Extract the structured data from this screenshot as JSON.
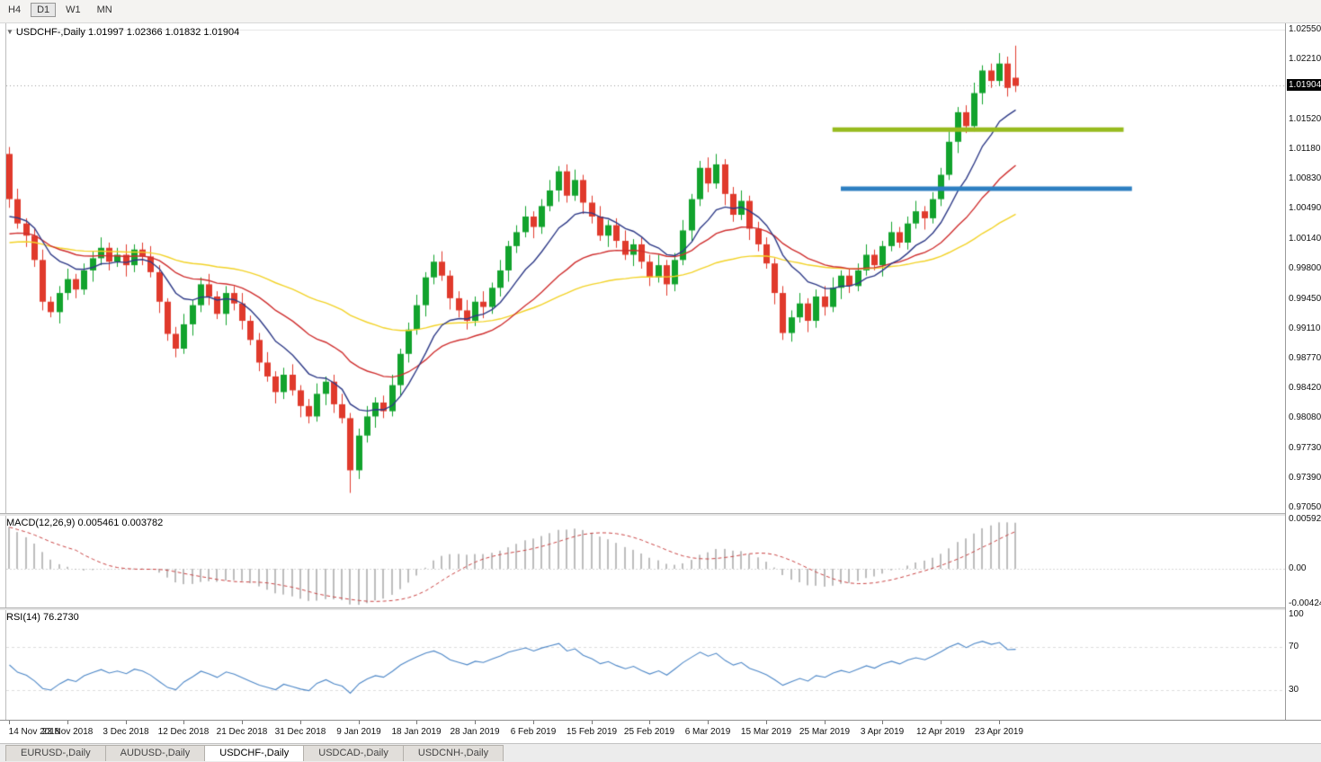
{
  "toolbar": {
    "timeframes": [
      {
        "label": "H4",
        "active": false
      },
      {
        "label": "D1",
        "active": true
      },
      {
        "label": "W1",
        "active": false
      },
      {
        "label": "MN",
        "active": false
      }
    ]
  },
  "main": {
    "title": "USDCHF-,Daily  1.01997 1.02366 1.01832 1.01904",
    "bid_label": "1.01904"
  },
  "macd_label": "MACD(12,26,9) 0.005461 0.003782",
  "rsi_label": "RSI(14) 76.2730",
  "tabs": [
    {
      "label": "EURUSD-,Daily",
      "active": false
    },
    {
      "label": "AUDUSD-,Daily",
      "active": false
    },
    {
      "label": "USDCHF-,Daily",
      "active": true
    },
    {
      "label": "USDCAD-,Daily",
      "active": false
    },
    {
      "label": "USDCNH-,Daily",
      "active": false
    }
  ],
  "chart_data": {
    "type": "candlestick",
    "symbol": "USDCHF-",
    "timeframe": "Daily",
    "ohlc_display": {
      "open": "1.01997",
      "high": "1.02366",
      "low": "1.01832",
      "close": "1.01904"
    },
    "bid": 1.01904,
    "up_color": "#12a32d",
    "down_color": "#e03a2c",
    "y_axis": {
      "max": 1.0255,
      "min": 0.9705,
      "labels": [
        "1.02550",
        "1.02210",
        "1.01870",
        "1.01520",
        "1.01180",
        "1.00830",
        "1.00490",
        "1.00140",
        "0.99800",
        "0.99450",
        "0.99110",
        "0.98770",
        "0.98420",
        "0.98080",
        "0.97730",
        "0.97390",
        "0.97050"
      ]
    },
    "x_axis": {
      "bars_per_label": 7,
      "labels": [
        "14 Nov 2018",
        "23 Nov 2018",
        "3 Dec 2018",
        "12 Dec 2018",
        "21 Dec 2018",
        "31 Dec 2018",
        "9 Jan 2019",
        "18 Jan 2019",
        "28 Jan 2019",
        "6 Feb 2019",
        "15 Feb 2019",
        "25 Feb 2019",
        "6 Mar 2019",
        "15 Mar 2019",
        "25 Mar 2019",
        "3 Apr 2019",
        "12 Apr 2019",
        "23 Apr 2019"
      ]
    },
    "candles": {
      "open": [
        1.0112,
        1.006,
        1.0032,
        1.0018,
        0.999,
        0.9942,
        0.993,
        0.9952,
        0.9968,
        0.9956,
        0.9978,
        0.9992,
        1.0004,
        0.9988,
        0.9996,
        0.9984,
        1.0002,
        0.9994,
        0.9976,
        0.9942,
        0.9905,
        0.9888,
        0.9916,
        0.9938,
        0.9962,
        0.9948,
        0.9928,
        0.9952,
        0.994,
        0.992,
        0.9898,
        0.9872,
        0.9856,
        0.9838,
        0.9858,
        0.984,
        0.9822,
        0.981,
        0.9836,
        0.985,
        0.9824,
        0.9808,
        0.9748,
        0.9788,
        0.981,
        0.9826,
        0.9816,
        0.9846,
        0.9882,
        0.991,
        0.9938,
        0.997,
        0.9988,
        0.9972,
        0.9946,
        0.9932,
        0.992,
        0.9942,
        0.9936,
        0.9958,
        0.9978,
        1.0006,
        1.0022,
        1.004,
        1.0028,
        1.0052,
        1.007,
        1.0092,
        1.0064,
        1.0082,
        1.0056,
        1.004,
        1.0018,
        1.003,
        1.0012,
        0.9996,
        1.0008,
        0.9988,
        0.997,
        0.9984,
        0.9962,
        0.999,
        1.0024,
        1.006,
        1.0096,
        1.0078,
        1.01,
        1.0066,
        1.0042,
        1.0058,
        1.0026,
        1.0008,
        0.9986,
        0.9952,
        0.9906,
        0.9924,
        0.994,
        0.992,
        0.9948,
        0.9936,
        0.9958,
        0.9972,
        0.996,
        0.9978,
        0.9996,
        0.9984,
        1.0006,
        1.0022,
        1.001,
        1.0032,
        1.0046,
        1.0038,
        1.006,
        1.0088,
        1.0126,
        1.016,
        1.0144,
        1.0182,
        1.0208,
        1.0196,
        1.0216,
        1.01997
      ],
      "high": [
        1.012,
        1.0072,
        1.0038,
        1.0026,
        1.0002,
        0.9948,
        0.996,
        0.998,
        0.9974,
        0.9986,
        1.0,
        1.0016,
        1.001,
        1.0004,
        1.0008,
        1.0008,
        1.001,
        1.0006,
        0.9984,
        0.9946,
        0.9913,
        0.9928,
        0.9944,
        0.997,
        0.9974,
        0.9954,
        0.996,
        0.996,
        0.9952,
        0.9926,
        0.9906,
        0.9884,
        0.9862,
        0.9866,
        0.987,
        0.9846,
        0.983,
        0.9848,
        0.9856,
        0.9858,
        0.9836,
        0.9814,
        0.9796,
        0.9822,
        0.9832,
        0.9834,
        0.9858,
        0.9888,
        0.9918,
        0.995,
        0.9976,
        0.9996,
        1.0,
        0.9978,
        0.9954,
        0.9944,
        0.9948,
        0.9954,
        0.9964,
        0.999,
        1.0012,
        1.003,
        1.0052,
        1.0046,
        1.006,
        1.0082,
        1.0098,
        1.01,
        1.0094,
        1.0088,
        1.0064,
        1.0052,
        1.0036,
        1.0038,
        1.0024,
        1.0014,
        1.0016,
        0.9996,
        0.9996,
        0.999,
        0.9998,
        1.0036,
        1.0066,
        1.0104,
        1.0108,
        1.0112,
        1.0106,
        1.0074,
        1.007,
        1.0064,
        1.0034,
        1.0016,
        0.9992,
        0.996,
        0.9932,
        0.9952,
        0.9946,
        0.9956,
        0.996,
        0.997,
        0.9978,
        0.998,
        0.9986,
        1.0008,
        1.0002,
        1.0012,
        1.0034,
        1.0028,
        1.004,
        1.0058,
        1.0052,
        1.0068,
        1.0096,
        1.0138,
        1.0166,
        1.0168,
        1.0194,
        1.0214,
        1.0216,
        1.0228,
        1.0224,
        1.02366
      ],
      "low": [
        1.005,
        1.0026,
        1.0005,
        0.9982,
        0.9932,
        0.9924,
        0.9917,
        0.9944,
        0.9946,
        0.995,
        0.9965,
        0.9984,
        0.9978,
        0.9982,
        0.9971,
        0.9976,
        0.9984,
        0.997,
        0.9929,
        0.9897,
        0.9878,
        0.9882,
        0.9903,
        0.993,
        0.9938,
        0.9922,
        0.9915,
        0.9932,
        0.991,
        0.9892,
        0.9862,
        0.985,
        0.9825,
        0.983,
        0.9834,
        0.9809,
        0.9802,
        0.9804,
        0.9823,
        0.9814,
        0.9802,
        0.9722,
        0.9738,
        0.978,
        0.9797,
        0.9808,
        0.981,
        0.9833,
        0.9872,
        0.9904,
        0.9925,
        0.9962,
        0.9966,
        0.9933,
        0.9924,
        0.991,
        0.9914,
        0.9923,
        0.9928,
        0.9948,
        0.9965,
        0.9998,
        1.0016,
        1.0015,
        1.002,
        1.0046,
        1.0057,
        1.0056,
        1.0058,
        1.0043,
        1.0032,
        1.0012,
        1.0005,
        1.0004,
        0.999,
        0.9983,
        0.998,
        0.996,
        0.9964,
        0.9949,
        0.9954,
        0.9984,
        1.0011,
        1.0052,
        1.0068,
        1.0072,
        1.0053,
        1.0034,
        1.0036,
        1.0013,
        1.0,
        0.998,
        0.9939,
        0.9898,
        0.9896,
        0.9918,
        0.9907,
        0.9912,
        0.9926,
        0.993,
        0.9945,
        0.9952,
        0.9954,
        0.9972,
        0.9978,
        0.9971,
        1.0,
        1.0004,
        1.0002,
        1.0026,
        1.0025,
        1.0032,
        1.0052,
        1.0082,
        1.0113,
        1.0136,
        1.0138,
        1.0169,
        1.0188,
        1.019,
        1.0178,
        1.01832
      ],
      "close": [
        1.006,
        1.0032,
        1.0018,
        0.999,
        0.9942,
        0.993,
        0.9952,
        0.9968,
        0.9956,
        0.9978,
        0.9992,
        1.0004,
        0.9988,
        0.9996,
        0.9984,
        1.0002,
        0.9994,
        0.9976,
        0.9942,
        0.9905,
        0.9888,
        0.9916,
        0.9938,
        0.9962,
        0.9948,
        0.9928,
        0.9952,
        0.994,
        0.992,
        0.9898,
        0.9872,
        0.9856,
        0.9838,
        0.9858,
        0.984,
        0.9822,
        0.981,
        0.9836,
        0.985,
        0.9824,
        0.9808,
        0.9748,
        0.9788,
        0.981,
        0.9826,
        0.9816,
        0.9846,
        0.9882,
        0.991,
        0.9938,
        0.997,
        0.9988,
        0.9972,
        0.9946,
        0.9932,
        0.992,
        0.9942,
        0.9936,
        0.9958,
        0.9978,
        1.0006,
        1.0022,
        1.004,
        1.0028,
        1.0052,
        1.007,
        1.0092,
        1.0064,
        1.0082,
        1.0056,
        1.004,
        1.0018,
        1.003,
        1.0012,
        0.9996,
        1.0008,
        0.9988,
        0.997,
        0.9984,
        0.9962,
        0.999,
        1.0024,
        1.006,
        1.0096,
        1.0078,
        1.01,
        1.0066,
        1.0042,
        1.0058,
        1.0026,
        1.0008,
        0.9986,
        0.9952,
        0.9906,
        0.9924,
        0.994,
        0.992,
        0.9948,
        0.9936,
        0.9958,
        0.9972,
        0.996,
        0.9978,
        0.9996,
        0.9984,
        1.0006,
        1.0022,
        1.001,
        1.0032,
        1.0046,
        1.0038,
        1.006,
        1.0088,
        1.0126,
        1.016,
        1.0144,
        1.0182,
        1.0208,
        1.0196,
        1.0216,
        1.0188,
        1.01904
      ]
    },
    "moving_averages": [
      {
        "period": 10,
        "color": "#2e3a87",
        "seed_offset": -0.002
      },
      {
        "period": 25,
        "color": "#cf2f2f",
        "seed_offset": -0.004
      },
      {
        "period": 60,
        "color": "#f2d227",
        "seed_offset": -0.005
      }
    ],
    "annotations": {
      "resistance_line": {
        "price": 1.014,
        "color": "#97bb1e",
        "bar_start": 99,
        "bar_end": 134
      },
      "support_line": {
        "price": 1.0072,
        "color": "#2d7fc1",
        "bar_start": 100,
        "bar_end": 135
      }
    },
    "macd": {
      "name": "MACD(12,26,9)",
      "fast": 12,
      "slow": 26,
      "signal": 9,
      "value": "0.005461",
      "signal_value": "0.003782",
      "axis_labels": [
        "0.005923",
        "0.00",
        "-0.004241"
      ],
      "axis_max": 0.005923,
      "axis_min": -0.004241,
      "hist_color": "#bdbdbd",
      "signal_color": "#c94343"
    },
    "rsi": {
      "name": "RSI(14)",
      "period": 14,
      "value": "76.2730",
      "axis_labels": [
        "100",
        "70",
        "30"
      ],
      "levels": [
        70,
        30
      ],
      "color": "#4d87c7"
    }
  }
}
